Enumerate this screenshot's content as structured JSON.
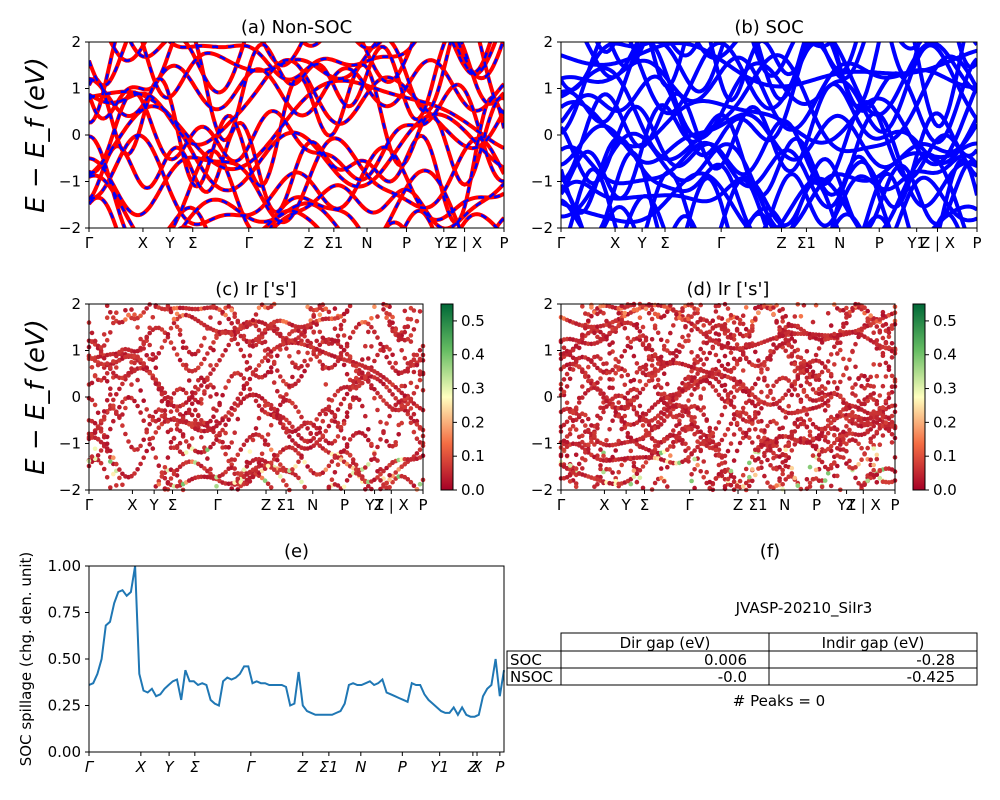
{
  "figure_id": "JVASP-20210_SiIr3",
  "energy_ylabel": "E − E_f (eV)",
  "colors": {
    "nonsoc_band": "#ff0000",
    "nonsoc_dash": "#0000ff",
    "soc_band": "#0000ff",
    "spillage_line": "#1f77b4",
    "cmap_low": "#a50026",
    "cmap_mid": "#ffffbf",
    "cmap_high": "#006837"
  },
  "chart_data": [
    {
      "id": "a",
      "type": "line",
      "title": "(a) Non-SOC",
      "ylabel": "E − E_f (eV)",
      "ylim": [
        -2,
        2
      ],
      "yticks": [
        "2",
        "1",
        "0",
        "−1",
        "−2"
      ],
      "kpath": [
        "Γ",
        "X",
        "Y",
        "Σ",
        "Γ",
        "Z",
        "Σ1",
        "N",
        "P",
        "Y1",
        "Z | X",
        "P"
      ],
      "note": "spin-up (red) and spin-down (blue dashed) bands overlap"
    },
    {
      "id": "b",
      "type": "line",
      "title": "(b) SOC",
      "ylim": [
        -2,
        2
      ],
      "yticks": [
        "2",
        "1",
        "0",
        "−1",
        "−2"
      ],
      "kpath": [
        "Γ",
        "X",
        "Y",
        "Σ",
        "Γ",
        "Z",
        "Σ1",
        "N",
        "P",
        "Y1",
        "Z | X",
        "P"
      ]
    },
    {
      "id": "c",
      "type": "scatter",
      "title": "(c)  Ir ['s']",
      "ylabel": "E − E_f (eV)",
      "ylim": [
        -2,
        2
      ],
      "yticks": [
        "2",
        "1",
        "0",
        "−1",
        "−2"
      ],
      "kpath": [
        "Γ",
        "X",
        "Y",
        "Σ",
        "Γ",
        "Z",
        "Σ1",
        "N",
        "P",
        "Y1",
        "Z | X",
        "P"
      ],
      "colorbar": {
        "range": [
          0.0,
          0.55
        ],
        "ticks": [
          "0.0",
          "0.1",
          "0.2",
          "0.3",
          "0.4",
          "0.5"
        ]
      }
    },
    {
      "id": "d",
      "type": "scatter",
      "title": "(d) Ir ['s']",
      "ylim": [
        -2,
        2
      ],
      "yticks": [
        "2",
        "1",
        "0",
        "−1",
        "−2"
      ],
      "kpath": [
        "Γ",
        "X",
        "Y",
        "Σ",
        "Γ",
        "Z",
        "Σ1",
        "N",
        "P",
        "Y1",
        "Z | X",
        "P"
      ],
      "colorbar": {
        "range": [
          0.0,
          0.55
        ],
        "ticks": [
          "0.0",
          "0.1",
          "0.2",
          "0.3",
          "0.4",
          "0.5"
        ]
      }
    },
    {
      "id": "e",
      "type": "line",
      "title": "(e)",
      "ylabel": "SOC spillage (chg. den. unit)",
      "ylim": [
        0,
        1.0
      ],
      "yticks": [
        "1.00",
        "0.75",
        "0.50",
        "0.25",
        "0.00"
      ],
      "kpath": [
        "Γ",
        "X",
        "Y",
        "Σ",
        "Γ",
        "Z",
        "Σ1",
        "N",
        "P",
        "Y1",
        "Z",
        "X",
        "P"
      ],
      "x": [
        0,
        1,
        2,
        3,
        4,
        5,
        6,
        7,
        8,
        9,
        10,
        11,
        12,
        13,
        14,
        15,
        16,
        17,
        18,
        19,
        20,
        21,
        22,
        23,
        24,
        25,
        26,
        27,
        28,
        29,
        30,
        31,
        32,
        33,
        34,
        35,
        36,
        37,
        38,
        39,
        40,
        41,
        42,
        43,
        44,
        45,
        46,
        47,
        48,
        49,
        50,
        51,
        52,
        53,
        54,
        55,
        56,
        57,
        58,
        59,
        60,
        61,
        62,
        63,
        64,
        65,
        66,
        67,
        68,
        69,
        70,
        71,
        72,
        73,
        74,
        75,
        76,
        77,
        78,
        79,
        80,
        81,
        82,
        83,
        84,
        85,
        86,
        87,
        88,
        89,
        90,
        91,
        92,
        93,
        94,
        95,
        96,
        97,
        98,
        99
      ],
      "y": [
        0.36,
        0.37,
        0.42,
        0.5,
        0.68,
        0.7,
        0.8,
        0.86,
        0.87,
        0.84,
        0.86,
        1.0,
        0.42,
        0.33,
        0.32,
        0.34,
        0.3,
        0.31,
        0.34,
        0.36,
        0.38,
        0.39,
        0.28,
        0.44,
        0.38,
        0.38,
        0.36,
        0.37,
        0.36,
        0.28,
        0.26,
        0.25,
        0.38,
        0.4,
        0.39,
        0.4,
        0.42,
        0.46,
        0.46,
        0.37,
        0.38,
        0.37,
        0.37,
        0.36,
        0.36,
        0.36,
        0.36,
        0.35,
        0.25,
        0.26,
        0.43,
        0.25,
        0.22,
        0.21,
        0.2,
        0.2,
        0.2,
        0.2,
        0.2,
        0.21,
        0.22,
        0.26,
        0.36,
        0.37,
        0.36,
        0.36,
        0.37,
        0.38,
        0.36,
        0.37,
        0.39,
        0.32,
        0.31,
        0.3,
        0.29,
        0.28,
        0.27,
        0.37,
        0.36,
        0.36,
        0.31,
        0.28,
        0.26,
        0.24,
        0.22,
        0.21,
        0.21,
        0.24,
        0.2,
        0.24,
        0.2,
        0.19,
        0.19,
        0.2,
        0.3,
        0.34,
        0.36,
        0.5,
        0.3,
        0.44
      ]
    },
    {
      "id": "f",
      "type": "table",
      "title": "(f)",
      "subtitle": "JVASP-20210_SiIr3",
      "columns": [
        "",
        "Dir gap (eV)",
        "Indir gap (eV)"
      ],
      "rows": [
        [
          "SOC",
          "0.006",
          "-0.28"
        ],
        [
          "NSOC",
          "-0.0",
          "-0.425"
        ]
      ],
      "footer": "# Peaks = 0"
    }
  ]
}
